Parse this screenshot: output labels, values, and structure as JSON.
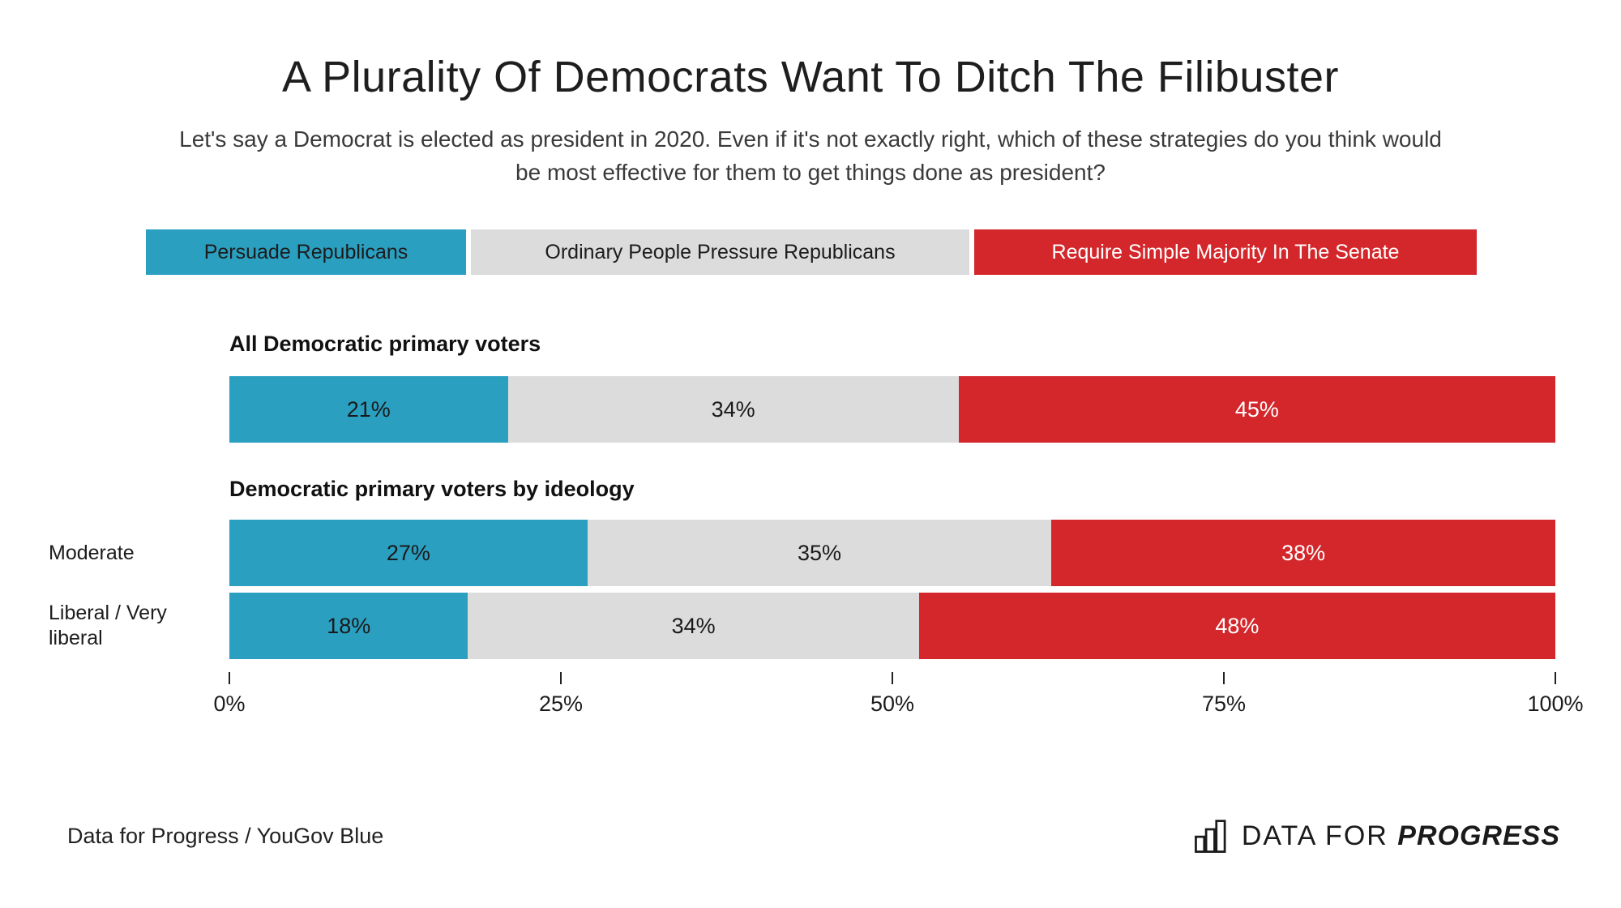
{
  "title": "A Plurality Of Democrats Want To Ditch The Filibuster",
  "subtitle": "Let's say a Democrat is elected as president in 2020. Even if it's not exactly right, which of these strategies do you think would be most effective for them to get things done as president?",
  "legend": {
    "items": [
      {
        "label": "Persuade Republicans",
        "color": "#2B9FC0"
      },
      {
        "label": "Ordinary People Pressure Republicans",
        "color": "#DCDCDC"
      },
      {
        "label": "Require Simple Majority In The Senate",
        "color": "#D3272B"
      }
    ]
  },
  "chart": {
    "section1_header": "All Democratic primary voters",
    "section2_header": "Democratic primary voters by ideology",
    "rows": [
      {
        "label": "",
        "segments": [
          {
            "text": "21%",
            "w": 21
          },
          {
            "text": "34%",
            "w": 34
          },
          {
            "text": "45%",
            "w": 45
          }
        ]
      },
      {
        "label": "Moderate",
        "segments": [
          {
            "text": "27%",
            "w": 27
          },
          {
            "text": "35%",
            "w": 35
          },
          {
            "text": "38%",
            "w": 38
          }
        ]
      },
      {
        "label": "Liberal / Very liberal",
        "segments": [
          {
            "text": "18%",
            "w": 18
          },
          {
            "text": "34%",
            "w": 34
          },
          {
            "text": "48%",
            "w": 48
          }
        ]
      }
    ],
    "axis_ticks": [
      {
        "label": "0%",
        "pos": 0
      },
      {
        "label": "25%",
        "pos": 25
      },
      {
        "label": "50%",
        "pos": 50
      },
      {
        "label": "75%",
        "pos": 75
      },
      {
        "label": "100%",
        "pos": 100
      }
    ]
  },
  "footer": {
    "source": "Data for Progress / YouGov Blue",
    "logo_icon": "bar-chart-icon",
    "logo_text_regular": "DATA FOR",
    "logo_text_bold": "PROGRESS"
  },
  "colors": {
    "teal": "#2B9FC0",
    "gray": "#DCDCDC",
    "red": "#D3272B",
    "text_dark": "#1e1e1e",
    "text_on_red": "#ffffff",
    "background": "#ffffff"
  },
  "chart_data": {
    "type": "bar",
    "stacked": true,
    "orientation": "horizontal",
    "title": "A Plurality Of Democrats Want To Ditch The Filibuster",
    "subtitle": "Let's say a Democrat is elected as president in 2020. Even if it's not exactly right, which of these strategies do you think would be most effective for them to get things done as president?",
    "categories": [
      "All Democratic primary voters",
      "Moderate",
      "Liberal / Very liberal"
    ],
    "section_headers": [
      "All Democratic primary voters",
      "Democratic primary voters by ideology"
    ],
    "series": [
      {
        "name": "Persuade Republicans",
        "color": "#2B9FC0",
        "values": [
          21,
          27,
          18
        ]
      },
      {
        "name": "Ordinary People Pressure Republicans",
        "color": "#DCDCDC",
        "values": [
          34,
          35,
          34
        ]
      },
      {
        "name": "Require Simple Majority In The Senate",
        "color": "#D3272B",
        "values": [
          45,
          38,
          48
        ]
      }
    ],
    "value_unit": "%",
    "xlim": [
      0,
      100
    ],
    "x_ticks": [
      "0%",
      "25%",
      "50%",
      "75%",
      "100%"
    ],
    "legend_position": "top",
    "data_labels": true,
    "grid": false,
    "source": "Data for Progress / YouGov Blue"
  }
}
